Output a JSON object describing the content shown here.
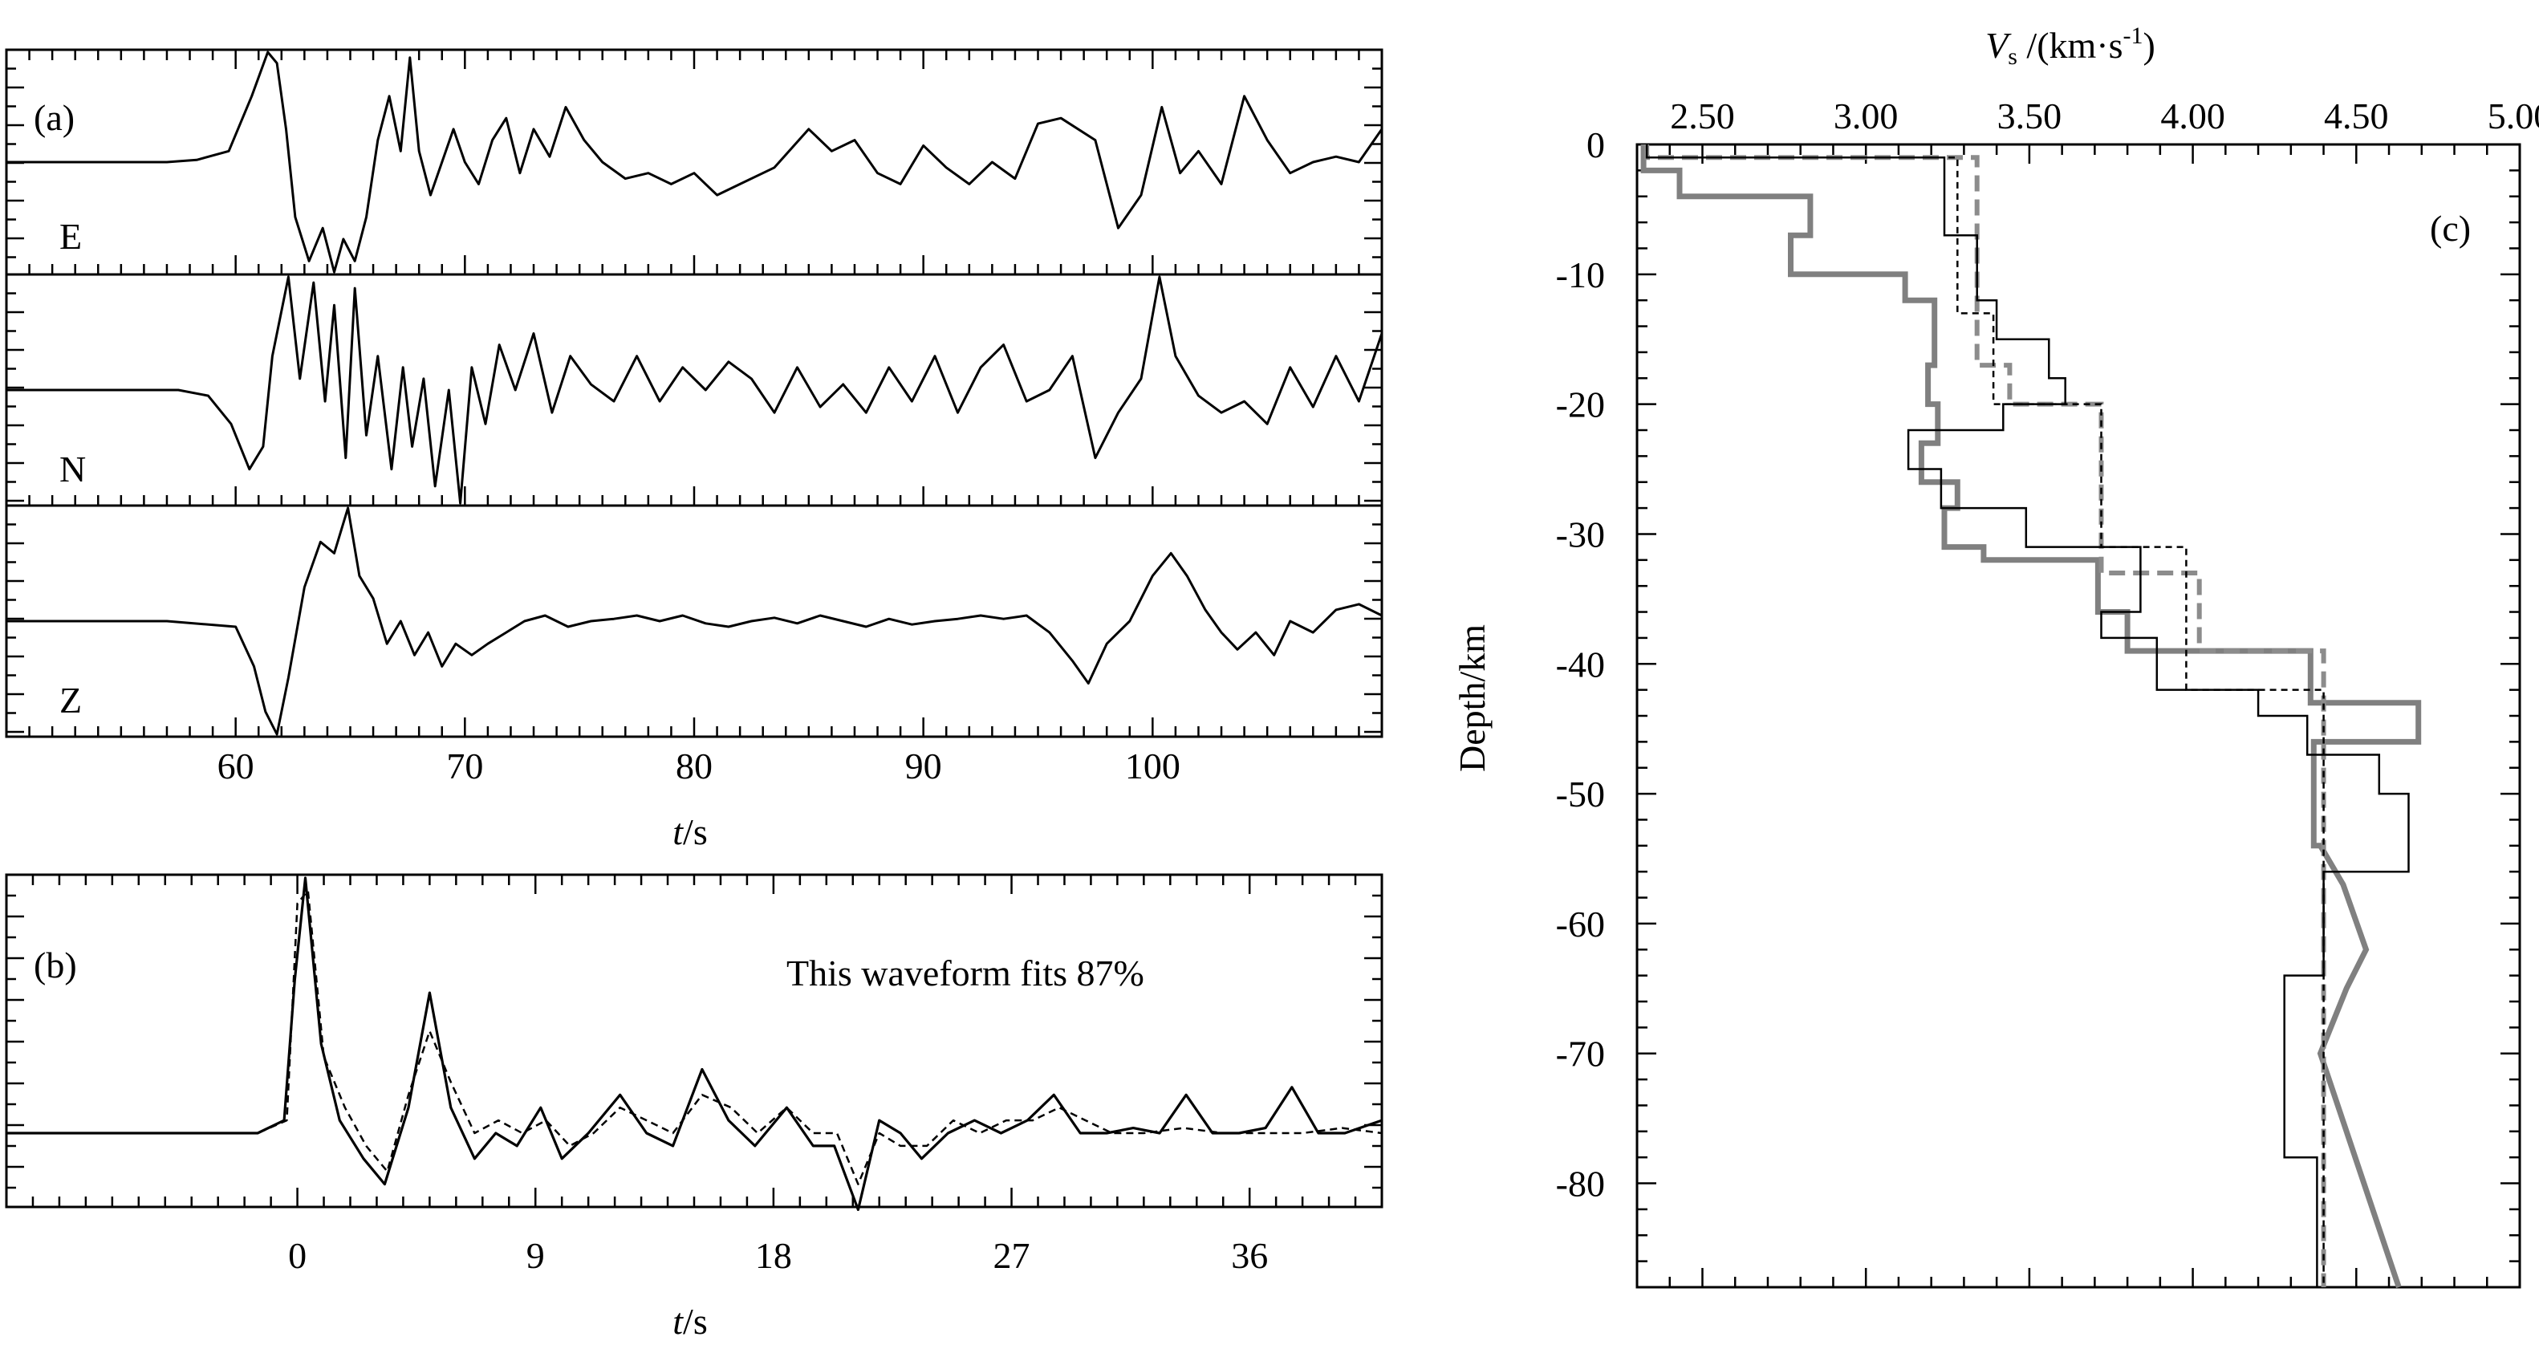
{
  "chart_data": [
    {
      "type": "line",
      "panel": "(a)",
      "xlabel_var": "t",
      "xlabel_unit": "/s",
      "xlim": [
        50,
        110
      ],
      "xticks": [
        60,
        70,
        80,
        90,
        100
      ],
      "grid": false,
      "series": [
        {
          "name": "E",
          "x": [
            50,
            57,
            58.3,
            59.7,
            60.7,
            61.4,
            61.8,
            62.2,
            62.6,
            63.2,
            63.8,
            64.3,
            64.7,
            65.2,
            65.7,
            66.2,
            66.7,
            67.2,
            67.6,
            68.0,
            68.5,
            69.0,
            69.5,
            70.0,
            70.6,
            71.2,
            71.8,
            72.4,
            73.0,
            73.7,
            74.4,
            75.2,
            76.0,
            77.0,
            78.0,
            79.0,
            80.0,
            81.0,
            82.0,
            83.5,
            85.0,
            86.0,
            87.0,
            88.0,
            89.0,
            90.0,
            91.0,
            92.0,
            93.0,
            94.0,
            95.0,
            96.0,
            97.5,
            98.5,
            99.5,
            100.4,
            101.2,
            102.0,
            103.0,
            104.0,
            105.0,
            106.0,
            107.0,
            108.0,
            109.0,
            110.0
          ],
          "y": [
            0,
            0,
            0.02,
            0.1,
            0.6,
            1.0,
            0.9,
            0.3,
            -0.5,
            -0.9,
            -0.6,
            -1.0,
            -0.7,
            -0.9,
            -0.5,
            0.2,
            0.6,
            0.1,
            0.95,
            0.1,
            -0.3,
            0.0,
            0.3,
            0.0,
            -0.2,
            0.2,
            0.4,
            -0.1,
            0.3,
            0.05,
            0.5,
            0.2,
            0.0,
            -0.15,
            -0.1,
            -0.2,
            -0.1,
            -0.3,
            -0.2,
            -0.05,
            0.3,
            0.1,
            0.2,
            -0.1,
            -0.2,
            0.15,
            -0.05,
            -0.2,
            0.0,
            -0.15,
            0.35,
            0.4,
            0.2,
            -0.6,
            -0.3,
            0.5,
            -0.1,
            0.1,
            -0.2,
            0.6,
            0.2,
            -0.1,
            0.0,
            0.05,
            0.0,
            0.3
          ]
        },
        {
          "name": "N",
          "x": [
            50,
            55,
            57.5,
            58.8,
            59.8,
            60.6,
            61.2,
            61.6,
            62.3,
            62.8,
            63.4,
            63.9,
            64.3,
            64.8,
            65.2,
            65.7,
            66.2,
            66.8,
            67.3,
            67.7,
            68.2,
            68.7,
            69.3,
            69.8,
            70.3,
            70.9,
            71.5,
            72.2,
            73.0,
            73.8,
            74.6,
            75.5,
            76.5,
            77.5,
            78.5,
            79.5,
            80.5,
            81.5,
            82.5,
            83.5,
            84.5,
            85.5,
            86.5,
            87.5,
            88.5,
            89.5,
            90.5,
            91.5,
            92.5,
            93.5,
            94.5,
            95.5,
            96.5,
            97.5,
            98.5,
            99.5,
            100.3,
            101.0,
            102.0,
            103.0,
            104.0,
            105.0,
            106.0,
            107.0,
            108.0,
            109.0,
            110.0
          ],
          "y": [
            0,
            0,
            0.0,
            -0.05,
            -0.3,
            -0.7,
            -0.5,
            0.3,
            1.0,
            0.1,
            0.95,
            -0.1,
            0.75,
            -0.6,
            0.9,
            -0.4,
            0.3,
            -0.7,
            0.2,
            -0.5,
            0.1,
            -0.85,
            0.0,
            -1.0,
            0.2,
            -0.3,
            0.4,
            0.0,
            0.5,
            -0.2,
            0.3,
            0.05,
            -0.1,
            0.3,
            -0.1,
            0.2,
            0.0,
            0.25,
            0.1,
            -0.2,
            0.2,
            -0.15,
            0.05,
            -0.2,
            0.2,
            -0.1,
            0.3,
            -0.2,
            0.2,
            0.4,
            -0.1,
            0.0,
            0.3,
            -0.6,
            -0.2,
            0.1,
            1.0,
            0.3,
            -0.05,
            -0.2,
            -0.1,
            -0.3,
            0.2,
            -0.15,
            0.3,
            -0.1,
            0.5
          ]
        },
        {
          "name": "Z",
          "x": [
            50,
            57,
            60.0,
            60.8,
            61.3,
            61.8,
            62.3,
            63.0,
            63.7,
            64.3,
            64.9,
            65.4,
            66.0,
            66.6,
            67.2,
            67.8,
            68.4,
            69.0,
            69.6,
            70.3,
            71.0,
            71.8,
            72.6,
            73.5,
            74.5,
            75.5,
            76.5,
            77.5,
            78.5,
            79.5,
            80.5,
            81.5,
            82.5,
            83.5,
            84.5,
            85.5,
            86.5,
            87.5,
            88.5,
            89.5,
            90.5,
            91.5,
            92.5,
            93.5,
            94.5,
            95.5,
            96.5,
            97.2,
            98.0,
            99.0,
            100.0,
            100.8,
            101.5,
            102.3,
            103.0,
            103.7,
            104.5,
            105.3,
            106.0,
            107.0,
            108.0,
            109.0,
            110.0
          ],
          "y": [
            0,
            0,
            -0.05,
            -0.4,
            -0.8,
            -1.0,
            -0.5,
            0.3,
            0.7,
            0.6,
            1.0,
            0.4,
            0.2,
            -0.2,
            0.0,
            -0.3,
            -0.1,
            -0.4,
            -0.2,
            -0.3,
            -0.2,
            -0.1,
            0.0,
            0.05,
            -0.05,
            0.0,
            0.02,
            0.05,
            0.0,
            0.05,
            -0.02,
            -0.05,
            0.0,
            0.03,
            -0.02,
            0.05,
            0.0,
            -0.05,
            0.02,
            -0.03,
            0.0,
            0.02,
            0.05,
            0.02,
            0.05,
            -0.1,
            -0.35,
            -0.55,
            -0.2,
            0.0,
            0.4,
            0.6,
            0.4,
            0.1,
            -0.1,
            -0.25,
            -0.1,
            -0.3,
            0.0,
            -0.1,
            0.1,
            0.15,
            0.05
          ]
        }
      ]
    },
    {
      "type": "line",
      "panel": "(b)",
      "xlabel_var": "t",
      "xlabel_unit": "/s",
      "xlim": [
        -11,
        41
      ],
      "xticks": [
        0,
        9,
        18,
        27,
        36
      ],
      "annotation": "This waveform fits 87%",
      "grid": false,
      "series": [
        {
          "style": "solid",
          "x": [
            -11,
            -1.5,
            -0.5,
            -0.1,
            0.3,
            0.9,
            1.6,
            2.5,
            3.3,
            4.2,
            5.0,
            5.8,
            6.7,
            7.5,
            8.3,
            9.2,
            10.0,
            11.0,
            12.2,
            13.2,
            14.2,
            15.3,
            16.3,
            17.3,
            18.5,
            19.5,
            20.3,
            21.2,
            22.0,
            22.8,
            23.6,
            24.6,
            25.6,
            26.6,
            27.6,
            28.6,
            29.6,
            30.6,
            31.6,
            32.6,
            33.6,
            34.6,
            35.6,
            36.6,
            37.6,
            38.6,
            39.6,
            41.0
          ],
          "y": [
            0,
            0,
            0.05,
            0.6,
            1.0,
            0.35,
            0.05,
            -0.1,
            -0.2,
            0.1,
            0.55,
            0.1,
            -0.1,
            0.0,
            -0.05,
            0.1,
            -0.1,
            0.0,
            0.15,
            0.0,
            -0.05,
            0.25,
            0.05,
            -0.05,
            0.1,
            -0.05,
            -0.05,
            -0.3,
            0.05,
            0.0,
            -0.1,
            0.0,
            0.05,
            0.0,
            0.05,
            0.15,
            0.0,
            0.0,
            0.02,
            0.0,
            0.15,
            0.0,
            0.0,
            0.02,
            0.18,
            0.0,
            0.0,
            0.05
          ]
        },
        {
          "style": "dashed",
          "x": [
            -11,
            -1.5,
            -0.4,
            0.0,
            0.4,
            1.0,
            1.8,
            2.6,
            3.4,
            4.2,
            5.0,
            5.8,
            6.7,
            7.6,
            8.5,
            9.4,
            10.3,
            11.2,
            12.2,
            13.2,
            14.2,
            15.3,
            16.4,
            17.4,
            18.5,
            19.5,
            20.4,
            21.2,
            22.0,
            22.8,
            23.8,
            24.8,
            25.8,
            26.8,
            27.8,
            28.8,
            29.8,
            30.8,
            32.0,
            33.5,
            35.0,
            36.5,
            38.0,
            39.5,
            41.0
          ],
          "y": [
            0,
            0,
            0.05,
            0.9,
            0.95,
            0.3,
            0.1,
            -0.05,
            -0.15,
            0.15,
            0.4,
            0.2,
            0.0,
            0.05,
            0.0,
            0.05,
            -0.05,
            0.0,
            0.1,
            0.05,
            0.0,
            0.15,
            0.1,
            0.0,
            0.1,
            0.0,
            0.0,
            -0.2,
            0.0,
            -0.05,
            -0.05,
            0.05,
            0.0,
            0.05,
            0.05,
            0.1,
            0.05,
            0.0,
            0.0,
            0.02,
            0.0,
            0.0,
            0.0,
            0.02,
            0.0
          ]
        }
      ]
    },
    {
      "type": "line",
      "panel": "(c)",
      "xlabel_var": "V",
      "xlabel_sub": "s",
      "xlabel_unit": " /(km·s",
      "xlabel_sup": "-1",
      "xlabel_close": ")",
      "ylabel": "Depth/km",
      "xlim": [
        2.3,
        5.0
      ],
      "ylim": [
        -88,
        0
      ],
      "xticks": [
        "2.50",
        "3.00",
        "3.50",
        "4.00",
        "4.50",
        "5.00"
      ],
      "yticks": [
        0,
        -10,
        -20,
        -30,
        -40,
        -50,
        -60,
        -70,
        -80
      ],
      "grid": false,
      "series": [
        {
          "style": "gray-thick-solid",
          "vs": [
            2.32,
            2.32,
            2.43,
            2.43,
            2.83,
            2.83,
            2.77,
            2.77,
            3.12,
            3.12,
            3.21,
            3.21,
            3.19,
            3.19,
            3.22,
            3.22,
            3.17,
            3.17,
            3.28,
            3.28,
            3.24,
            3.24,
            3.36,
            3.36,
            3.71,
            3.71,
            3.8,
            3.8,
            4.36,
            4.36,
            4.69,
            4.69,
            4.37,
            4.37,
            4.37,
            4.39,
            4.46,
            4.46,
            4.53,
            4.53,
            4.47,
            4.47,
            4.39,
            4.39,
            4.63,
            4.63
          ],
          "depth": [
            0,
            -2,
            -2,
            -4,
            -4,
            -7,
            -7,
            -10,
            -10,
            -12,
            -12,
            -17,
            -17,
            -20,
            -20,
            -23,
            -23,
            -26,
            -26,
            -28,
            -28,
            -31,
            -31,
            -32,
            -32,
            -36,
            -36,
            -39,
            -39,
            -43,
            -43,
            -46,
            -46,
            -48,
            -54,
            -54,
            -57,
            -57,
            -62,
            -62,
            -65,
            -65,
            -70,
            -70,
            -88,
            -88
          ]
        },
        {
          "style": "gray-thick-dashed",
          "vs": [
            2.33,
            2.33,
            3.34,
            3.34,
            3.44,
            3.44,
            3.72,
            3.72,
            4.02,
            4.02,
            4.4,
            4.4
          ],
          "depth": [
            0,
            -1,
            -1,
            -17,
            -17,
            -20,
            -20,
            -33,
            -33,
            -39,
            -39,
            -88
          ]
        },
        {
          "style": "black-thin-solid",
          "vs": [
            2.33,
            2.33,
            3.24,
            3.24,
            3.34,
            3.34,
            3.4,
            3.4,
            3.56,
            3.56,
            3.61,
            3.61,
            3.42,
            3.42,
            3.13,
            3.13,
            3.23,
            3.23,
            3.49,
            3.49,
            3.84,
            3.84,
            3.72,
            3.72,
            3.89,
            3.89,
            4.2,
            4.2,
            4.35,
            4.35,
            4.57,
            4.57,
            4.66,
            4.66,
            4.4,
            4.4,
            4.28,
            4.28,
            4.38,
            4.38
          ],
          "depth": [
            0,
            -1,
            -1,
            -7,
            -7,
            -12,
            -12,
            -15,
            -15,
            -18,
            -18,
            -20,
            -20,
            -22,
            -22,
            -25,
            -25,
            -28,
            -28,
            -31,
            -31,
            -36,
            -36,
            -38,
            -38,
            -42,
            -42,
            -44,
            -44,
            -47,
            -47,
            -50,
            -50,
            -56,
            -56,
            -64,
            -64,
            -78,
            -78,
            -88
          ]
        },
        {
          "style": "black-thin-dashed",
          "vs": [
            2.33,
            2.33,
            3.28,
            3.28,
            3.39,
            3.39,
            3.72,
            3.72,
            3.98,
            3.98,
            4.4,
            4.4
          ],
          "depth": [
            0,
            -1,
            -1,
            -13,
            -13,
            -20,
            -20,
            -31,
            -31,
            -42,
            -42,
            -88
          ]
        }
      ]
    }
  ]
}
